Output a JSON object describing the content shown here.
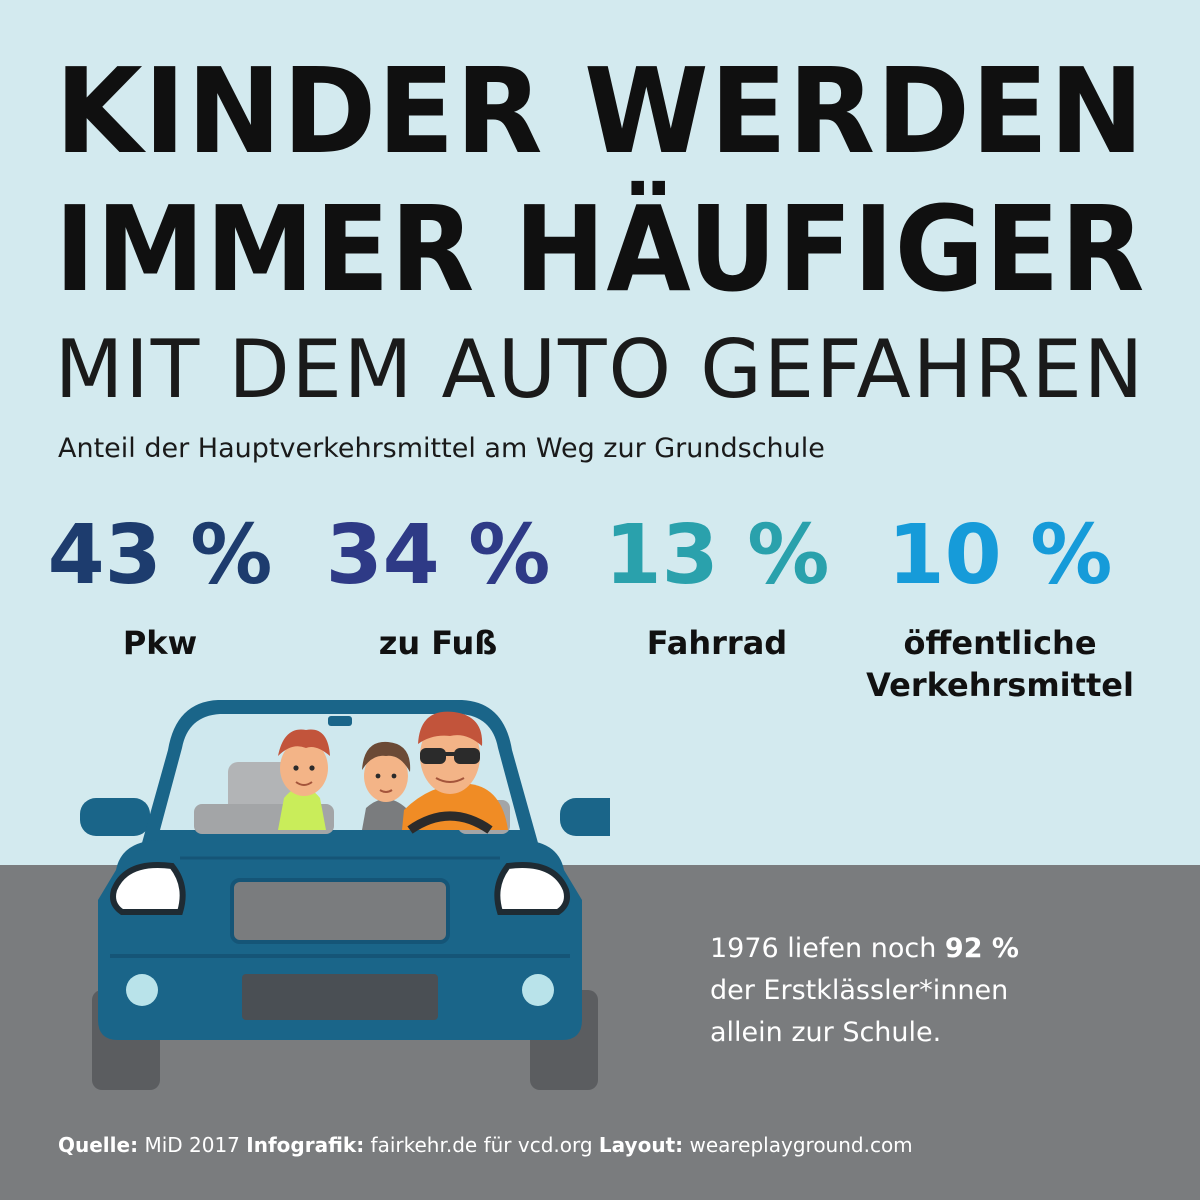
{
  "headline": {
    "line1": "KINDER WERDEN",
    "line2": "IMMER HÄUFIGER",
    "subline": "MIT DEM AUTO GEFAHREN"
  },
  "chart_data": {
    "type": "table",
    "title": "Anteil der Hauptverkehrsmittel am Weg zur Grundschule",
    "unit": "%",
    "categories": [
      "Pkw",
      "zu Fuß",
      "Fahrrad",
      "öffentliche Verkehrsmittel"
    ],
    "values": [
      43,
      34,
      13,
      10
    ],
    "display": [
      "43 %",
      "34 %",
      "13 %",
      "10 %"
    ],
    "label_lines": [
      [
        "Pkw"
      ],
      [
        "zu Fuß"
      ],
      [
        "Fahrrad"
      ],
      [
        "öffentliche",
        "Verkehrsmittel"
      ]
    ],
    "colors": [
      "#1d3c6e",
      "#2e3a86",
      "#2aa1ac",
      "#169bd9"
    ]
  },
  "info": {
    "line1_prefix": "1976 liefen noch ",
    "line1_bold": "92 %",
    "line2": "der Erstklässler*innen",
    "line3": "allein zur Schule."
  },
  "credits": {
    "source_label": "Quelle:",
    "source_value": "MiD 2017",
    "infographic_label": "Infografik:",
    "infographic_value": "fairkehr.de für vcd.org",
    "layout_label": "Layout:",
    "layout_value": "weareplayground.com"
  },
  "colors": {
    "background": "#d3eaef",
    "road": "#7a7c7e",
    "car_body": "#1a6589",
    "car_dark": "#134d6b"
  },
  "illustration": {
    "icon": "car-with-family-icon"
  }
}
